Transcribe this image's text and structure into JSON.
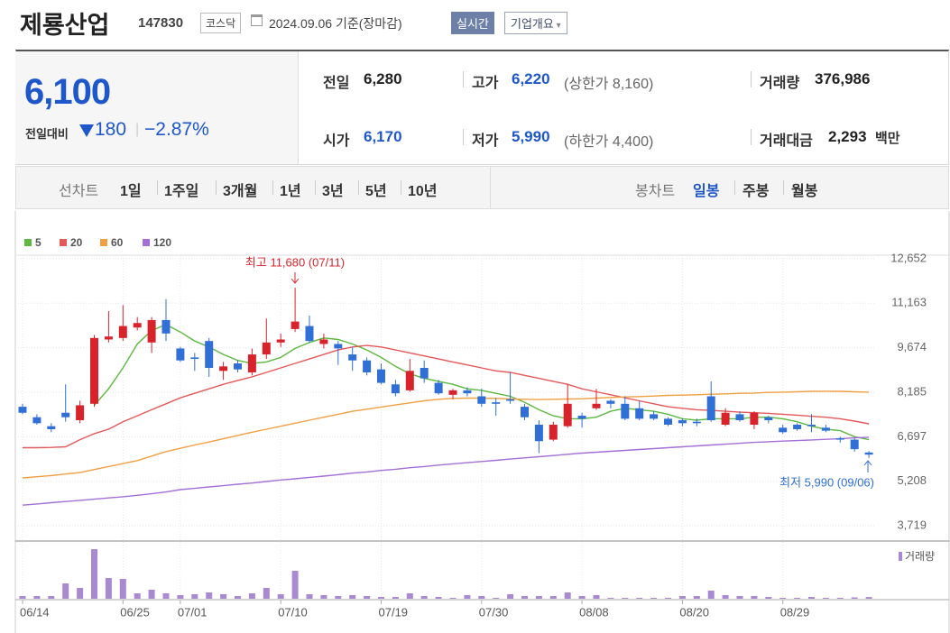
{
  "header": {
    "title": "제룡산업",
    "code": "147830",
    "market": "코스닥",
    "date": "2024.09.06 기준(장마감)",
    "buttons": [
      "실시간",
      "기업개요"
    ]
  },
  "quote": {
    "price": "6,100",
    "change_label": "전일대비",
    "change": "180",
    "change_pct": "−2.87%"
  },
  "summary": [
    {
      "label": "전일",
      "value": "6,280"
    },
    {
      "label": "고가",
      "value": "6,220",
      "note": "(상한가 8,160)"
    },
    {
      "label": "거래량",
      "value": "376,986"
    },
    {
      "label": "시가",
      "value": "6,170"
    },
    {
      "label": "저가",
      "value": "5,990",
      "note": "(하한가 4,400)"
    },
    {
      "label": "거래대금",
      "value": "2,293",
      "unit": "백만"
    }
  ],
  "tabs": {
    "line_label": "선차트",
    "line_periods": [
      "1일",
      "1주일",
      "3개월",
      "1년",
      "3년",
      "5년",
      "10년"
    ],
    "candle_label": "봉차트",
    "candle_periods": [
      "일봉",
      "주봉",
      "월봉"
    ],
    "candle_active": 0
  },
  "chart_data": {
    "type": "candlestick",
    "up_color": "#d9232c",
    "down_color": "#2f6fd6",
    "grid": true,
    "categories": [
      "06/14",
      null,
      null,
      null,
      null,
      null,
      null,
      "06/25",
      null,
      null,
      null,
      "07/01",
      null,
      null,
      null,
      null,
      null,
      null,
      "07/10",
      null,
      null,
      null,
      null,
      null,
      null,
      "07/19",
      null,
      null,
      null,
      null,
      null,
      null,
      "07/30",
      null,
      null,
      null,
      null,
      null,
      null,
      "08/08",
      null,
      null,
      null,
      null,
      null,
      null,
      "08/20",
      null,
      null,
      null,
      null,
      null,
      null,
      "08/29",
      null,
      null,
      null,
      null,
      null,
      null
    ],
    "open": [
      7700,
      7350,
      7050,
      7500,
      7250,
      7800,
      9950,
      10000,
      10350,
      9850,
      10600,
      9650,
      9350,
      9900,
      8900,
      9150,
      8850,
      9450,
      9850,
      10300,
      10400,
      9800,
      9800,
      9450,
      9250,
      8950,
      8450,
      8250,
      9000,
      8500,
      8100,
      8250,
      8050,
      7850,
      7950,
      7700,
      7100,
      6600,
      7050,
      7400,
      7650,
      7900,
      7800,
      7650,
      7450,
      7300,
      7250,
      7200,
      8050,
      7100,
      7450,
      7100,
      7350,
      7000,
      7100,
      7100,
      7000,
      6650,
      6600,
      6170
    ],
    "high": [
      7800,
      7450,
      7150,
      8450,
      7900,
      10100,
      10900,
      11100,
      10700,
      10700,
      11300,
      9700,
      9500,
      10000,
      9200,
      9250,
      9650,
      10650,
      10150,
      11680,
      10750,
      10150,
      9900,
      9700,
      9350,
      9150,
      8600,
      9300,
      9250,
      8600,
      8300,
      8350,
      8300,
      8000,
      8850,
      7800,
      7250,
      7200,
      8450,
      7500,
      8300,
      7950,
      8050,
      7900,
      7550,
      7350,
      7300,
      7300,
      8550,
      7650,
      7550,
      7550,
      7400,
      7100,
      7150,
      7450,
      7100,
      6700,
      6650,
      6220
    ],
    "low": [
      7450,
      7100,
      6850,
      7200,
      7150,
      7700,
      9850,
      9900,
      10250,
      9500,
      9900,
      9200,
      8900,
      8700,
      8600,
      8850,
      8750,
      9300,
      9700,
      10200,
      9850,
      9650,
      9100,
      8900,
      8750,
      8450,
      8050,
      8200,
      8500,
      8100,
      7950,
      8050,
      7700,
      7400,
      7800,
      7250,
      6150,
      6550,
      7000,
      7000,
      7600,
      7650,
      7250,
      7250,
      7250,
      7050,
      7050,
      7050,
      7200,
      7050,
      7200,
      6950,
      7150,
      6800,
      6900,
      6850,
      6850,
      6500,
      6200,
      5990
    ],
    "close": [
      7500,
      7150,
      6950,
      7350,
      7750,
      10000,
      10050,
      10400,
      10500,
      10600,
      10150,
      9250,
      9300,
      9000,
      9050,
      8950,
      9450,
      9850,
      9950,
      10550,
      9900,
      9950,
      9650,
      9250,
      8850,
      8500,
      8150,
      8900,
      8650,
      8150,
      8250,
      8150,
      7800,
      7800,
      7900,
      7350,
      6550,
      7100,
      7800,
      7300,
      7800,
      7800,
      7300,
      7300,
      7300,
      7100,
      7150,
      7150,
      7250,
      7500,
      7250,
      7500,
      7250,
      6850,
      6950,
      7050,
      6900,
      6600,
      6280,
      6100
    ],
    "series": [
      {
        "name": "5",
        "color": "#5cb83f",
        "values": [
          null,
          null,
          null,
          null,
          null,
          7750,
          8300,
          9000,
          9800,
          10250,
          10450,
          10200,
          9900,
          9700,
          9450,
          9250,
          9150,
          9200,
          9350,
          9650,
          9850,
          10000,
          9950,
          9800,
          9600,
          9350,
          9050,
          8800,
          8650,
          8550,
          8450,
          8300,
          8250,
          8150,
          8050,
          7850,
          7600,
          7400,
          7300,
          7300,
          7350,
          7550,
          7650,
          7600,
          7550,
          7450,
          7300,
          7250,
          7300,
          7300,
          7300,
          7350,
          7350,
          7300,
          7200,
          7050,
          6950,
          6900,
          6700,
          6600
        ]
      },
      {
        "name": "20",
        "color": "#e5585a",
        "values": [
          6330,
          6330,
          6340,
          6360,
          6600,
          6800,
          6950,
          7200,
          7400,
          7600,
          7800,
          8000,
          8150,
          8300,
          8450,
          8580,
          8700,
          8850,
          9000,
          9150,
          9300,
          9450,
          9600,
          9700,
          9750,
          9700,
          9600,
          9500,
          9400,
          9300,
          9200,
          9100,
          9000,
          8900,
          8850,
          8750,
          8650,
          8550,
          8450,
          8300,
          8200,
          8100,
          8000,
          7900,
          7800,
          7700,
          7650,
          7600,
          7580,
          7550,
          7520,
          7500,
          7480,
          7450,
          7420,
          7380,
          7350,
          7300,
          7220,
          7130
        ]
      },
      {
        "name": "60",
        "color": "#f0a043",
        "values": [
          5320,
          5360,
          5400,
          5450,
          5500,
          5600,
          5700,
          5800,
          5900,
          6050,
          6200,
          6310,
          6420,
          6520,
          6630,
          6740,
          6850,
          6950,
          7050,
          7150,
          7250,
          7350,
          7450,
          7550,
          7620,
          7690,
          7760,
          7830,
          7900,
          7950,
          7980,
          7990,
          7990,
          7980,
          7960,
          7950,
          7940,
          7950,
          7960,
          7970,
          7990,
          8010,
          8030,
          8040,
          8060,
          8080,
          8090,
          8100,
          8120,
          8130,
          8150,
          8160,
          8180,
          8190,
          8200,
          8215,
          8220,
          8215,
          8200,
          8190
        ]
      },
      {
        "name": "120",
        "color": "#a46fd6",
        "values": [
          4410,
          4450,
          4490,
          4530,
          4570,
          4610,
          4650,
          4690,
          4740,
          4790,
          4850,
          4930,
          4970,
          5020,
          5060,
          5110,
          5150,
          5200,
          5250,
          5290,
          5340,
          5380,
          5430,
          5480,
          5520,
          5570,
          5610,
          5660,
          5700,
          5750,
          5790,
          5830,
          5870,
          5910,
          5950,
          5990,
          6030,
          6070,
          6110,
          6150,
          6180,
          6210,
          6240,
          6270,
          6300,
          6330,
          6360,
          6390,
          6420,
          6450,
          6480,
          6510,
          6530,
          6550,
          6570,
          6590,
          6610,
          6630,
          6660,
          6680
        ]
      }
    ],
    "ylim": [
      3300,
      12800
    ],
    "yticks": [
      {
        "value": 12652,
        "label": "12,652"
      },
      {
        "value": 11163,
        "label": "11,163"
      },
      {
        "value": 9674,
        "label": "9,674"
      },
      {
        "value": 8185,
        "label": "8,185"
      },
      {
        "value": 6697,
        "label": "6,697"
      },
      {
        "value": 5208,
        "label": "5,208"
      },
      {
        "value": 3719,
        "label": "3,719"
      }
    ],
    "volume": {
      "name": "거래량",
      "color": "#a98ad2",
      "ylim": [
        0,
        12000000
      ],
      "values": [
        600000,
        600000,
        600000,
        3400000,
        2400000,
        11000000,
        4600000,
        4400000,
        1200000,
        2000000,
        1200000,
        800000,
        1000000,
        1400000,
        1000000,
        600000,
        1200000,
        2400000,
        1000000,
        6200000,
        1000000,
        800000,
        600000,
        800000,
        600000,
        400000,
        400000,
        1200000,
        600000,
        400000,
        200000,
        800000,
        600000,
        200000,
        1000000,
        600000,
        600000,
        600000,
        1400000,
        600000,
        800000,
        200000,
        200000,
        200000,
        200000,
        200000,
        600000,
        600000,
        1800000,
        800000,
        600000,
        600000,
        400000,
        200000,
        200000,
        400000,
        200000,
        200000,
        300000,
        376986
      ]
    },
    "annotations": [
      {
        "text": "최고 11,680 (07/11)",
        "color": "#d9232c"
      },
      {
        "text": "최저 5,990 (09/06)",
        "color": "#2f6fd6"
      }
    ]
  }
}
